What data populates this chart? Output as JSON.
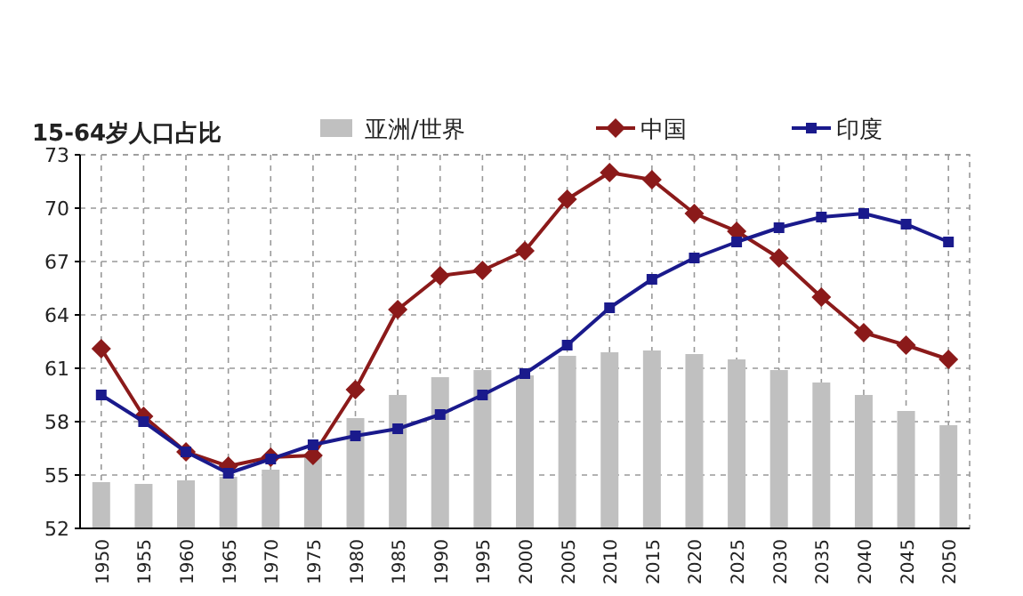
{
  "chart_data": {
    "type": "bar",
    "title": "15-64岁人口占比",
    "categories": [
      "1950",
      "1955",
      "1960",
      "1965",
      "1970",
      "1975",
      "1980",
      "1985",
      "1990",
      "1995",
      "2000",
      "2005",
      "2010",
      "2015",
      "2020",
      "2025",
      "2030",
      "2035",
      "2040",
      "2045",
      "2050"
    ],
    "series": [
      {
        "name": "亚洲/世界",
        "color": "#c0c0c0",
        "values": [
          54.6,
          54.5,
          54.7,
          54.9,
          55.3,
          56.1,
          58.2,
          59.5,
          60.5,
          60.9,
          60.6,
          61.7,
          61.9,
          62.0,
          61.8,
          61.5,
          60.9,
          60.2,
          59.5,
          58.6,
          57.8
        ]
      },
      {
        "name": "中国",
        "type": "line",
        "color": "#8b1a1a",
        "marker": "diamond",
        "values": [
          62.1,
          58.3,
          56.3,
          55.5,
          56.0,
          56.1,
          59.8,
          64.3,
          66.2,
          66.5,
          67.6,
          70.5,
          72.0,
          71.6,
          69.7,
          68.7,
          67.2,
          65.0,
          63.0,
          62.3,
          61.5
        ]
      },
      {
        "name": "印度",
        "type": "line",
        "color": "#1a1a8c",
        "marker": "square",
        "values": [
          59.5,
          58.0,
          56.3,
          55.1,
          55.9,
          56.7,
          57.2,
          57.6,
          58.4,
          59.5,
          60.7,
          62.3,
          64.4,
          66.0,
          67.2,
          68.1,
          68.9,
          69.5,
          69.7,
          69.1,
          68.1
        ]
      }
    ],
    "ylim": [
      52,
      73
    ],
    "yticks": [
      52,
      55,
      58,
      61,
      64,
      67,
      70,
      73
    ],
    "grid": true,
    "legend": "top",
    "line_style": "solid"
  }
}
